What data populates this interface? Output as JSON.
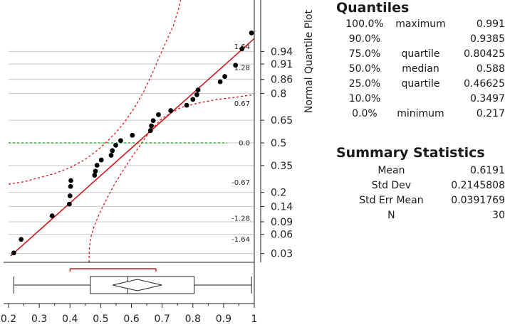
{
  "chart_data": {
    "type": "scatter",
    "title": "Normal Quantile Plot",
    "x_ticks": [
      0.2,
      0.3,
      0.4,
      0.5,
      0.6,
      0.7,
      0.8,
      0.9,
      1
    ],
    "x_tick_labels": [
      "0.2",
      "0.3",
      "0.4",
      "0.5",
      "0.6",
      "0.7",
      "0.8",
      "0.9",
      "1"
    ],
    "xlim": [
      0.2,
      1.0
    ],
    "ylim_normal_quantile": [
      -2.03,
      2.43
    ],
    "y_axis_label": "Normal Quantile Plot",
    "probability_ticks": [
      0.94,
      0.91,
      0.86,
      0.8,
      0.65,
      0.5,
      0.35,
      0.2,
      0.14,
      0.09,
      0.06,
      0.03
    ],
    "probability_tick_labels": [
      "0.94",
      "0.91",
      "0.86",
      "0.8",
      "0.65",
      "0.5",
      "0.35",
      "0.2",
      "0.14",
      "0.09",
      "0.06",
      "0.03"
    ],
    "z_gridlines": [
      1.64,
      1.28,
      0.67,
      0.0,
      -0.67,
      -1.28,
      -1.64
    ],
    "z_gridline_labels": [
      "1.64",
      "1.28",
      "0.67",
      "0.0",
      "-0.67",
      "-1.28",
      "-1.64"
    ],
    "points": {
      "x": [
        0.217,
        0.241,
        0.342,
        0.398,
        0.4,
        0.402,
        0.403,
        0.48,
        0.483,
        0.488,
        0.502,
        0.534,
        0.538,
        0.549,
        0.565,
        0.603,
        0.662,
        0.665,
        0.671,
        0.688,
        0.728,
        0.78,
        0.8,
        0.813,
        0.817,
        0.889,
        0.904,
        0.939,
        0.96,
        0.991
      ],
      "y": [
        -1.87,
        -1.64,
        -1.24,
        -1.04,
        -0.9,
        -0.74,
        -0.64,
        -0.55,
        -0.48,
        -0.38,
        -0.29,
        -0.21,
        -0.13,
        -0.04,
        0.04,
        0.13,
        0.21,
        0.29,
        0.38,
        0.48,
        0.55,
        0.64,
        0.74,
        0.82,
        0.9,
        1.04,
        1.13,
        1.32,
        1.6,
        1.87
      ]
    },
    "fit_line": {
      "mean": 0.6191,
      "std_dev": 0.2145808
    },
    "confidence_bands": {
      "lower": [
        [
          0.462,
          -2.03
        ],
        [
          0.463,
          -1.8
        ],
        [
          0.468,
          -1.6
        ],
        [
          0.48,
          -1.4
        ],
        [
          0.5,
          -1.15
        ],
        [
          0.52,
          -0.95
        ],
        [
          0.545,
          -0.7
        ],
        [
          0.575,
          -0.45
        ],
        [
          0.6,
          -0.25
        ],
        [
          0.63,
          -0.03
        ],
        [
          0.66,
          0.2
        ],
        [
          0.7,
          0.42
        ],
        [
          0.76,
          0.6
        ],
        [
          0.82,
          0.68
        ],
        [
          0.88,
          0.74
        ],
        [
          0.93,
          0.77
        ],
        [
          0.97,
          0.8
        ],
        [
          1.0,
          0.82
        ]
      ],
      "upper": [
        [
          0.2,
          -0.7
        ],
        [
          0.25,
          -0.66
        ],
        [
          0.3,
          -0.59
        ],
        [
          0.35,
          -0.52
        ],
        [
          0.4,
          -0.42
        ],
        [
          0.45,
          -0.28
        ],
        [
          0.49,
          -0.12
        ],
        [
          0.52,
          0.02
        ],
        [
          0.55,
          0.18
        ],
        [
          0.58,
          0.37
        ],
        [
          0.61,
          0.6
        ],
        [
          0.64,
          0.87
        ],
        [
          0.665,
          1.15
        ],
        [
          0.69,
          1.45
        ],
        [
          0.713,
          1.72
        ],
        [
          0.737,
          2.0
        ],
        [
          0.755,
          2.3
        ],
        [
          0.76,
          2.43
        ]
      ]
    },
    "box_plot": {
      "min": 0.217,
      "q1": 0.46625,
      "median": 0.588,
      "q3": 0.80425,
      "max": 0.991,
      "mean": 0.6191,
      "mean_ci": [
        0.539,
        0.699
      ],
      "shortest_half": [
        0.4,
        0.68
      ]
    },
    "colors": {
      "points": "#000000",
      "fit_line": "#cc1a1a",
      "bands": "#e0141c",
      "zero_line": "#2aa62a",
      "grid": "#c8c8c8",
      "axis": "#222222"
    }
  },
  "quantiles": {
    "title": "Quantiles",
    "rows": [
      {
        "pct": "100.0%",
        "label": "maximum",
        "value": "0.991"
      },
      {
        "pct": "90.0%",
        "label": "",
        "value": "0.9385"
      },
      {
        "pct": "75.0%",
        "label": "quartile",
        "value": "0.80425"
      },
      {
        "pct": "50.0%",
        "label": "median",
        "value": "0.588"
      },
      {
        "pct": "25.0%",
        "label": "quartile",
        "value": "0.46625"
      },
      {
        "pct": "10.0%",
        "label": "",
        "value": "0.3497"
      },
      {
        "pct": "0.0%",
        "label": "minimum",
        "value": "0.217"
      }
    ]
  },
  "summary": {
    "title": "Summary Statistics",
    "rows": [
      {
        "label": "Mean",
        "value": "0.6191"
      },
      {
        "label": "Std Dev",
        "value": "0.2145808"
      },
      {
        "label": "Std Err Mean",
        "value": "0.0391769"
      },
      {
        "label": "N",
        "value": "30"
      }
    ]
  }
}
